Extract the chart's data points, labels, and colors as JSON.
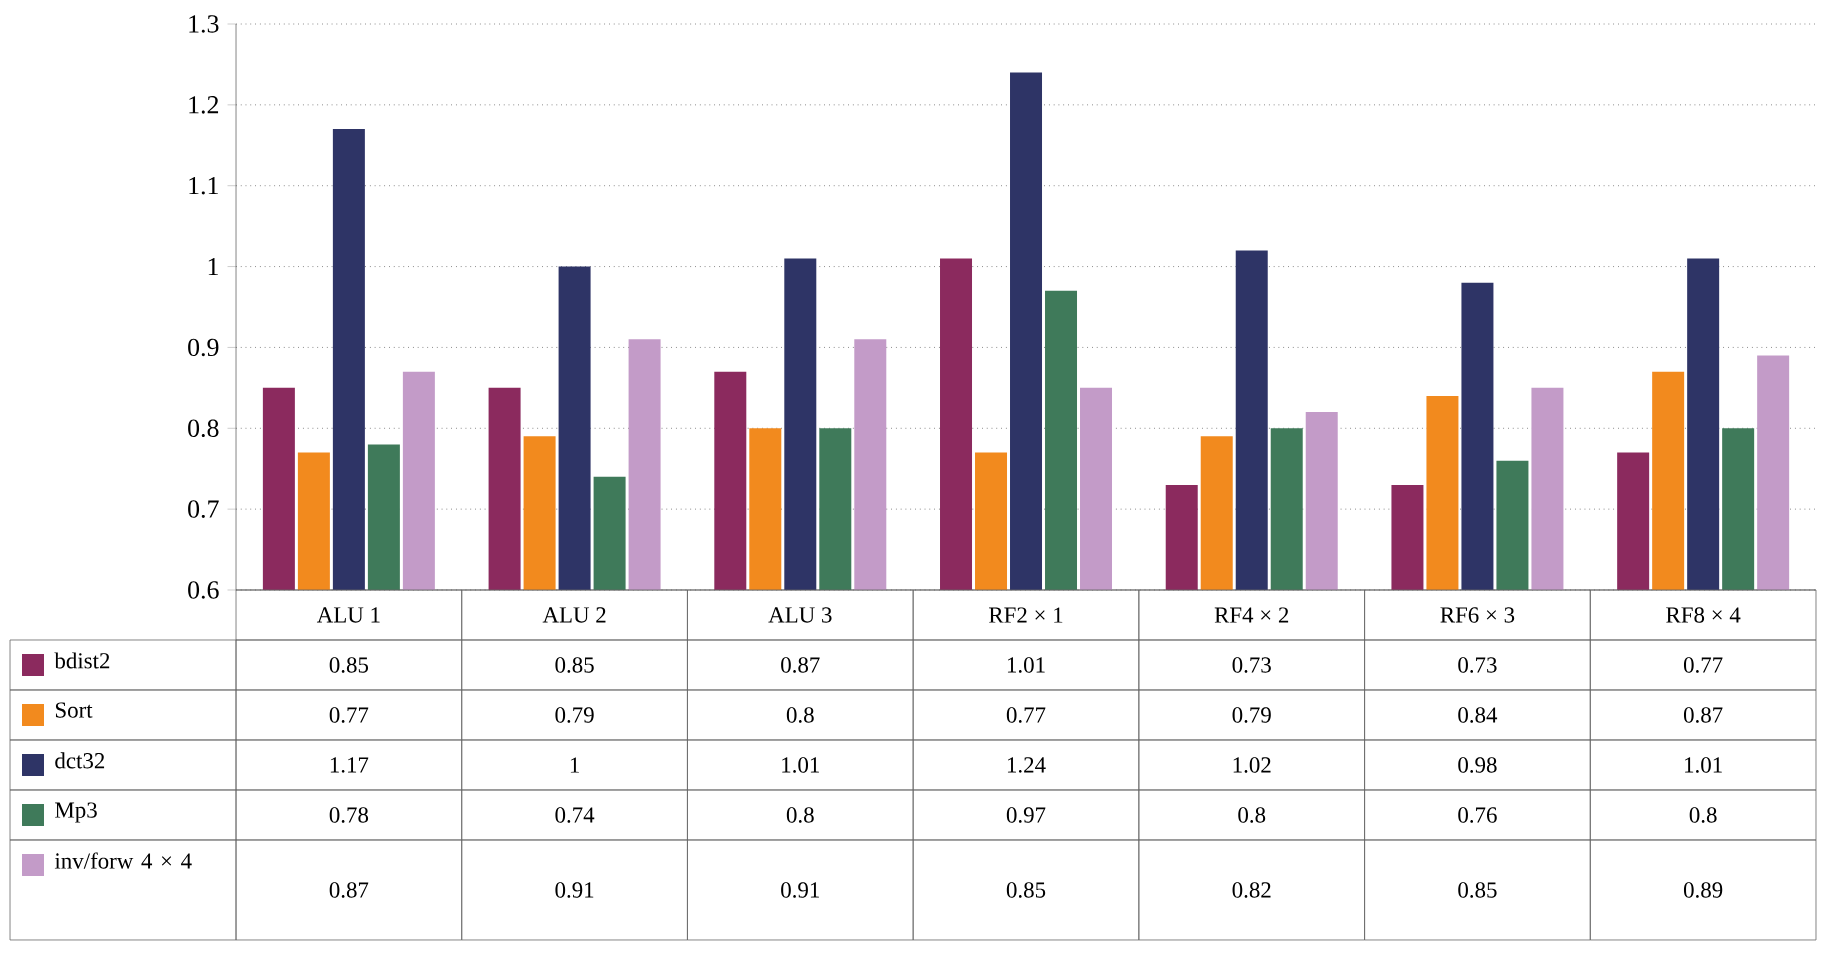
{
  "chart_data": {
    "type": "bar",
    "categories": [
      "ALU 1",
      "ALU 2",
      "ALU 3",
      "RF2 × 1",
      "RF4 × 2",
      "RF6 × 3",
      "RF8 × 4"
    ],
    "series": [
      {
        "name": "bdist2",
        "color": "#8b2a5e",
        "values": [
          0.85,
          0.85,
          0.87,
          1.01,
          0.73,
          0.73,
          0.77
        ]
      },
      {
        "name": "Sort",
        "color": "#f28a1e",
        "values": [
          0.77,
          0.79,
          0.8,
          0.77,
          0.79,
          0.84,
          0.87
        ]
      },
      {
        "name": "dct32",
        "color": "#2e3466",
        "values": [
          1.17,
          1,
          1.01,
          1.24,
          1.02,
          0.98,
          1.01
        ]
      },
      {
        "name": "Mp3",
        "color": "#3f7a5a",
        "values": [
          0.78,
          0.74,
          0.8,
          0.97,
          0.8,
          0.76,
          0.8
        ]
      },
      {
        "name": "inv/forw 4 × 4",
        "color": "#c39bc8",
        "values": [
          0.87,
          0.91,
          0.91,
          0.85,
          0.82,
          0.85,
          0.89
        ]
      }
    ],
    "ylim": [
      0.6,
      1.3
    ],
    "yticks": [
      0.6,
      0.7,
      0.8,
      0.9,
      1,
      1.1,
      1.2,
      1.3
    ],
    "grid": "y",
    "legend": "bottom",
    "data_labels": true
  }
}
